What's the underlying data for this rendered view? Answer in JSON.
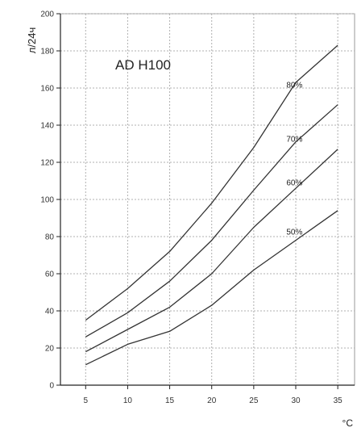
{
  "chart_data": {
    "type": "line",
    "title": "AD H100",
    "ylabel": "л/24ч",
    "xlabel": "°C",
    "xlim": [
      2,
      37
    ],
    "ylim": [
      0,
      200
    ],
    "xticks": [
      5,
      10,
      15,
      20,
      25,
      30,
      35
    ],
    "yticks": [
      0,
      20,
      40,
      60,
      80,
      100,
      120,
      140,
      160,
      180,
      200
    ],
    "grid": true,
    "x": [
      5,
      10,
      15,
      20,
      25,
      30,
      35
    ],
    "series": [
      {
        "name": "80%",
        "values": [
          35,
          52,
          72,
          98,
          128,
          163,
          183
        ]
      },
      {
        "name": "70%",
        "values": [
          26,
          39,
          56,
          78,
          105,
          131,
          151
        ]
      },
      {
        "name": "60%",
        "values": [
          18,
          30,
          42,
          60,
          85,
          106,
          127
        ]
      },
      {
        "name": "50%",
        "values": [
          11,
          22,
          29,
          43,
          62,
          78,
          94
        ]
      }
    ],
    "colors": {
      "axis": "#222222",
      "grid": "#b0b0b0",
      "line": "#333333",
      "frame": "#9a9a9a"
    }
  }
}
